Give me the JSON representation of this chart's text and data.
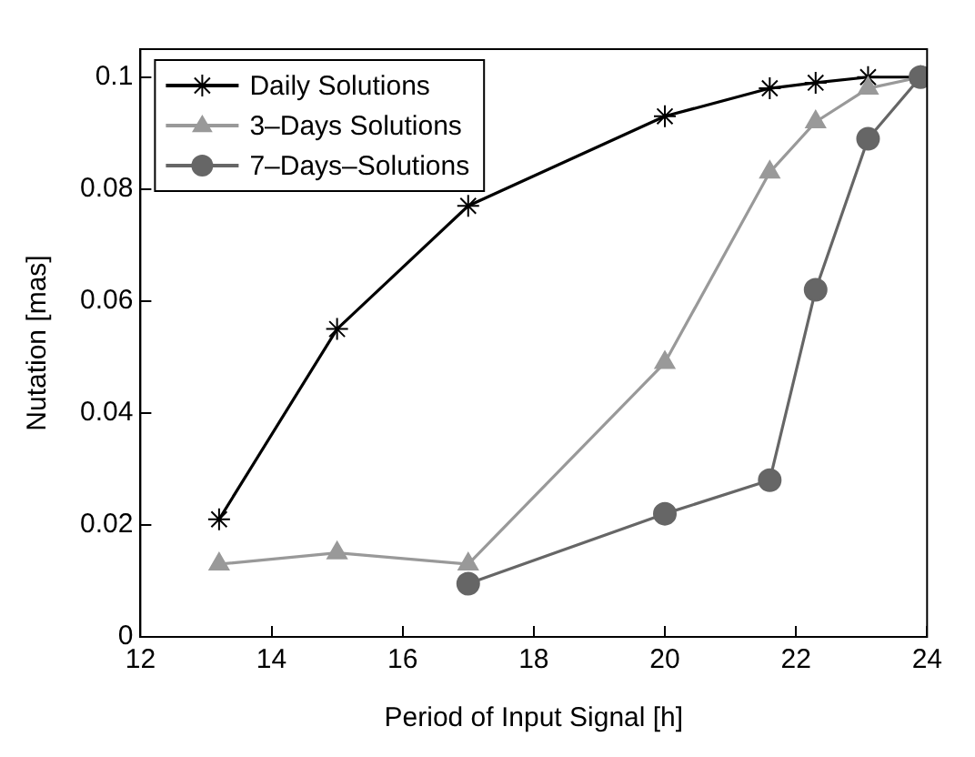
{
  "chart_data": {
    "type": "line",
    "xlabel": "Period of Input Signal [h]",
    "ylabel": "Nutation [mas]",
    "xlim": [
      12,
      24
    ],
    "xticks": [
      12,
      14,
      16,
      18,
      20,
      22,
      24
    ],
    "ylim": [
      0,
      0.105
    ],
    "yticks": [
      0,
      0.02,
      0.04,
      0.06,
      0.08,
      0.1
    ],
    "grid": false,
    "legend": "top left",
    "series": [
      {
        "name": "Daily Solutions",
        "color": "#000000",
        "marker": "cross",
        "x": [
          13.2,
          15,
          17,
          20,
          21.6,
          22.3,
          23.1,
          23.9
        ],
        "values": [
          0.021,
          0.055,
          0.077,
          0.093,
          0.098,
          0.099,
          0.1,
          0.1
        ]
      },
      {
        "name": "3–Days Solutions",
        "color": "#999999",
        "marker": "triangle",
        "x": [
          13.2,
          15,
          17,
          20,
          21.6,
          22.3,
          23.1,
          23.9
        ],
        "values": [
          0.013,
          0.015,
          0.013,
          0.049,
          0.083,
          0.092,
          0.098,
          0.1
        ]
      },
      {
        "name": "7–Days–Solutions",
        "color": "#666666",
        "marker": "circle",
        "x": [
          17,
          20,
          21.6,
          22.3,
          23.1,
          23.9
        ],
        "values": [
          0.0095,
          0.022,
          0.028,
          0.062,
          0.089,
          0.1
        ]
      }
    ]
  }
}
